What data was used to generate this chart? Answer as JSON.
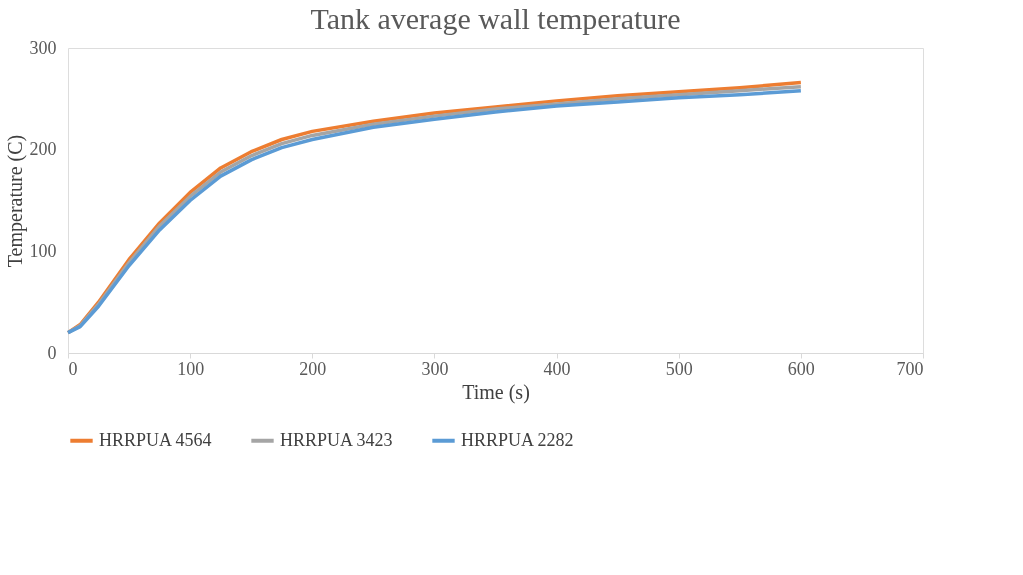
{
  "chart_data": {
    "type": "line",
    "title": "Tank average wall temperature",
    "xlabel": "Time (s)",
    "ylabel": "Temperature (C)",
    "xlim": [
      0,
      700
    ],
    "xticks": [
      0,
      100,
      200,
      300,
      400,
      500,
      600,
      700
    ],
    "ylim": [
      0,
      300
    ],
    "yticks": [
      0,
      100,
      200,
      300
    ],
    "grid": false,
    "legend": "bottom",
    "marker": "none",
    "line_style": "solid",
    "x": [
      0,
      10,
      25,
      50,
      75,
      100,
      125,
      150,
      175,
      200,
      250,
      300,
      350,
      400,
      450,
      500,
      550,
      600
    ],
    "series": [
      {
        "name": "HRRPUA 4564",
        "color": "#ed7d31",
        "values": [
          20,
          28,
          50,
          92,
          128,
          158,
          182,
          198,
          210,
          218,
          228,
          236,
          242,
          248,
          253,
          257,
          261,
          266
        ]
      },
      {
        "name": "HRRPUA 3423",
        "color": "#a5a5a5",
        "values": [
          20,
          27,
          48,
          89,
          125,
          154,
          178,
          194,
          206,
          214,
          225,
          233,
          240,
          245,
          250,
          254,
          258,
          262
        ]
      },
      {
        "name": "HRRPUA 2282",
        "color": "#5b9bd5",
        "values": [
          20,
          26,
          46,
          86,
          121,
          150,
          174,
          190,
          202,
          210,
          222,
          230,
          237,
          243,
          247,
          251,
          254,
          258
        ]
      }
    ]
  }
}
